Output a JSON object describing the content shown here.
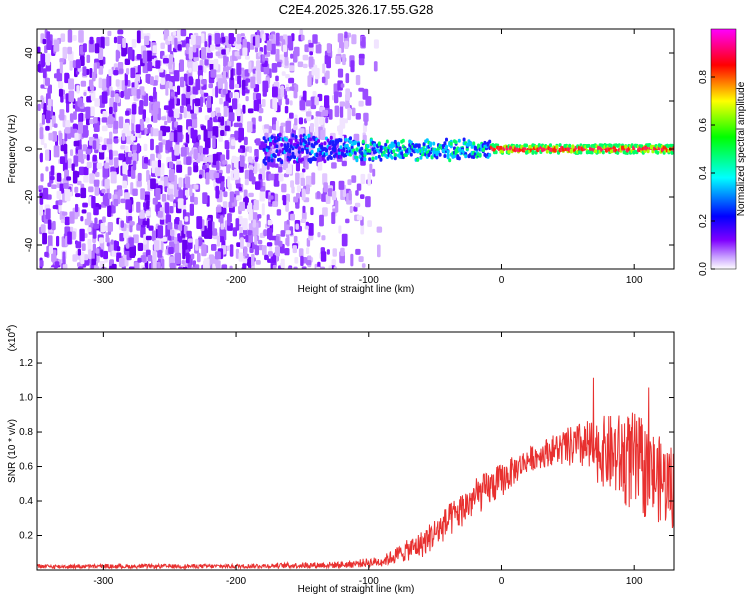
{
  "title": "C2E4.2025.326.17.55.G28",
  "chart_data": [
    {
      "type": "heatmap",
      "xlabel": "Height of straight line (km)",
      "ylabel": "Frequency (Hz)",
      "xlim": [
        -350,
        130
      ],
      "ylim": [
        -50,
        50
      ],
      "xticks": [
        -300,
        -200,
        -100,
        0,
        100
      ],
      "yticks": [
        -40,
        -20,
        0,
        20,
        40
      ],
      "xtick_labels": [
        "-300",
        "-200",
        "-100",
        "0",
        "100"
      ],
      "ytick_labels": [
        "-40",
        "-20",
        "0",
        "20",
        "40"
      ],
      "colorbar": {
        "label": "Normalized spectral amplitude",
        "range": [
          0,
          1
        ],
        "ticks": [
          0.0,
          0.2,
          0.4,
          0.6,
          0.8
        ],
        "tick_labels": [
          "0.0",
          "0.2",
          "0.4",
          "0.6",
          "0.8"
        ],
        "colors": [
          "#ffffff",
          "#7f00ff",
          "#0000ff",
          "#00ffff",
          "#00ff00",
          "#ffff00",
          "#ff0000",
          "#ff00ff"
        ]
      },
      "description_regions": {
        "noise_region_x": [
          -350,
          -100
        ],
        "signal_trace_x": [
          -180,
          130
        ],
        "signal_trace_freq_hz": 0
      }
    },
    {
      "type": "line",
      "xlabel": "Height of straight line (km)",
      "ylabel": "SNR (10 * v/v)",
      "scale_label": "(x10",
      "scale_exp": "4",
      "scale_close": ")",
      "xlim": [
        -350,
        130
      ],
      "ylim": [
        0,
        1.38
      ],
      "xticks": [
        -300,
        -200,
        -100,
        0,
        100
      ],
      "yticks": [
        0.2,
        0.4,
        0.6,
        0.8,
        1.0,
        1.2
      ],
      "xtick_labels": [
        "-300",
        "-200",
        "-100",
        "0",
        "100"
      ],
      "ytick_labels": [
        "0.2",
        "0.4",
        "0.6",
        "0.8",
        "1.0",
        "1.2"
      ],
      "color": "#e8302f",
      "envelope": {
        "x": [
          -350,
          -200,
          -120,
          -90,
          -60,
          -40,
          -20,
          0,
          20,
          40,
          60,
          80,
          100,
          120,
          130
        ],
        "mean": [
          0.02,
          0.022,
          0.03,
          0.05,
          0.15,
          0.28,
          0.42,
          0.52,
          0.64,
          0.7,
          0.72,
          0.68,
          0.62,
          0.52,
          0.48
        ],
        "noise": [
          0.012,
          0.012,
          0.02,
          0.03,
          0.08,
          0.1,
          0.11,
          0.1,
          0.07,
          0.09,
          0.14,
          0.22,
          0.3,
          0.25,
          0.25
        ]
      }
    }
  ]
}
